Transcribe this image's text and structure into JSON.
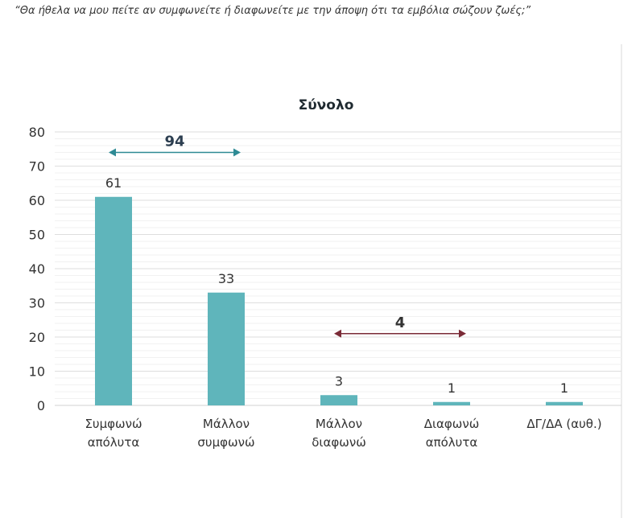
{
  "question": "“Θα ήθελα να μου πείτε αν συμφωνείτε ή διαφωνείτε με την άποψη ότι τα εμβόλια σώζουν ζωές;”",
  "chart_data": {
    "type": "bar",
    "title": "Σύνολο",
    "categories": [
      [
        "Συμφωνώ",
        "απόλυτα"
      ],
      [
        "Μάλλον",
        "συμφωνώ"
      ],
      [
        "Μάλλον",
        "διαφωνώ"
      ],
      [
        "Διαφωνώ",
        "απόλυτα"
      ],
      [
        "ΔΓ/ΔΑ (αυθ.)"
      ]
    ],
    "values": [
      61,
      33,
      3,
      1,
      1
    ],
    "ylim": [
      0,
      80
    ],
    "yticks": [
      0,
      10,
      20,
      30,
      40,
      50,
      60,
      70,
      80
    ],
    "grid": true,
    "bar_color": "#5fb5bb",
    "annotations": [
      {
        "label": "94",
        "from_category": 0,
        "to_category": 1,
        "y": 74,
        "color": "#2e8a94",
        "text_color": "#2c3e50"
      },
      {
        "label": "4",
        "from_category": 2,
        "to_category": 3,
        "y": 21,
        "color": "#7a2a36",
        "text_color": "#333333"
      }
    ]
  }
}
